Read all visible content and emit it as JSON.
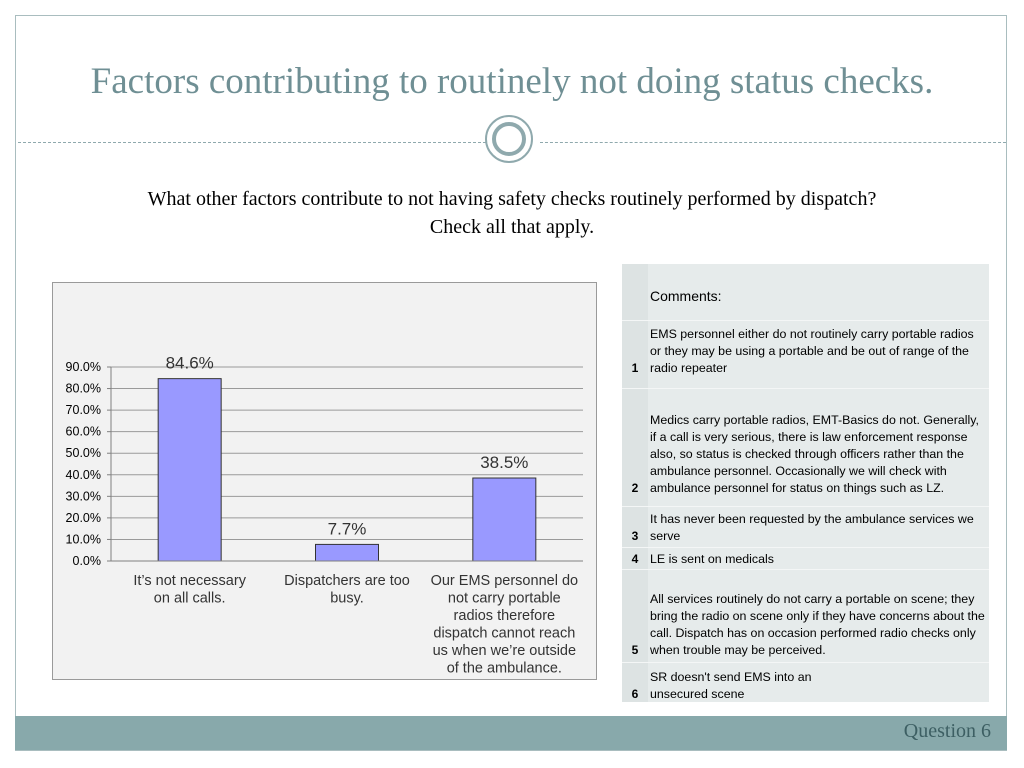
{
  "slide": {
    "title": "Factors contributing to routinely not doing status checks.",
    "question_line1": "What other factors contribute to not having safety checks routinely performed by dispatch?",
    "question_line2": "Check all that apply.",
    "footer": "Question 6"
  },
  "chart_data": {
    "type": "bar",
    "categories": [
      "It’s not necessary on all calls.",
      "Dispatchers are too busy.",
      "Our EMS personnel do not carry portable radios therefore dispatch cannot reach us when we’re outside of the ambulance."
    ],
    "values": [
      84.6,
      7.7,
      38.5
    ],
    "data_labels": [
      "84.6%",
      "7.7%",
      "38.5%"
    ],
    "y_ticks": [
      "0.0%",
      "10.0%",
      "20.0%",
      "30.0%",
      "40.0%",
      "50.0%",
      "60.0%",
      "70.0%",
      "80.0%",
      "90.0%"
    ],
    "ylim": [
      0,
      90
    ],
    "grid": true,
    "bar_color": "#9999ff",
    "title": "",
    "xlabel": "",
    "ylabel": ""
  },
  "comments": {
    "header": "Comments:",
    "rows": [
      {
        "num": "1",
        "text": "EMS personnel either do not routinely carry portable radios or they may be using a portable and be out of range of the radio repeater"
      },
      {
        "num": "2",
        "text": "Medics carry portable radios, EMT-Basics do not. Generally, if a call is very serious, there is law enforcement response also, so status is checked through officers rather than the ambulance personnel. Occasionally we will check with ambulance personnel for status on things such as LZ."
      },
      {
        "num": "3",
        "text": "It has never been requested by the ambulance services we serve"
      },
      {
        "num": "4",
        "text": "LE is sent on medicals"
      },
      {
        "num": "5",
        "text": "All services routinely do not carry a portable on scene; they bring the radio on scene only if they have concerns about the call.  Dispatch has on occasion performed radio checks only when trouble may be perceived."
      },
      {
        "num": "6",
        "text": "SR doesn't  send EMS into an unsecured scene"
      }
    ]
  }
}
